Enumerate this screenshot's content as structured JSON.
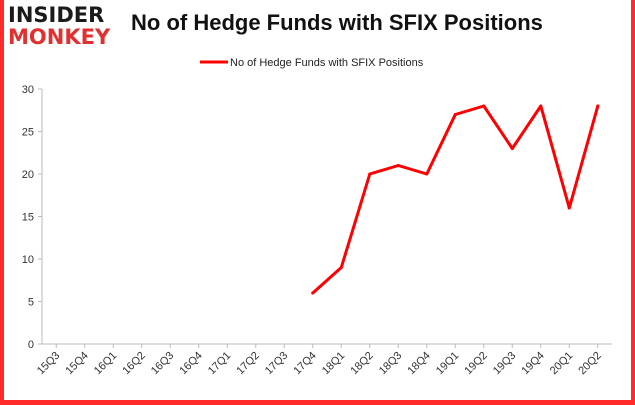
{
  "brand": {
    "line1": "INSIDER",
    "line2": "MONKEY",
    "color_dark": "#1a1a1a",
    "color_red": "#e03030"
  },
  "title": "No of Hedge Funds with SFIX Positions",
  "chart_data": {
    "type": "line",
    "title": "No of Hedge Funds with SFIX Positions",
    "xlabel": "",
    "ylabel": "",
    "categories": [
      "15Q3",
      "15Q4",
      "16Q1",
      "16Q2",
      "16Q3",
      "16Q4",
      "17Q1",
      "17Q2",
      "17Q3",
      "17Q4",
      "18Q1",
      "18Q2",
      "18Q3",
      "18Q4",
      "19Q1",
      "19Q2",
      "19Q3",
      "19Q4",
      "20Q1",
      "20Q2"
    ],
    "series": [
      {
        "name": "No of Hedge Funds with SFIX Positions",
        "color": "#ff0000",
        "values": [
          null,
          null,
          null,
          null,
          null,
          null,
          null,
          null,
          null,
          6,
          9,
          20,
          21,
          20,
          27,
          28,
          23,
          28,
          16,
          28
        ]
      }
    ],
    "yticks": [
      "0",
      "5",
      "10",
      "15",
      "20",
      "25",
      "30"
    ],
    "ylim": [
      0,
      30
    ],
    "grid": false,
    "legend": "top-center"
  }
}
